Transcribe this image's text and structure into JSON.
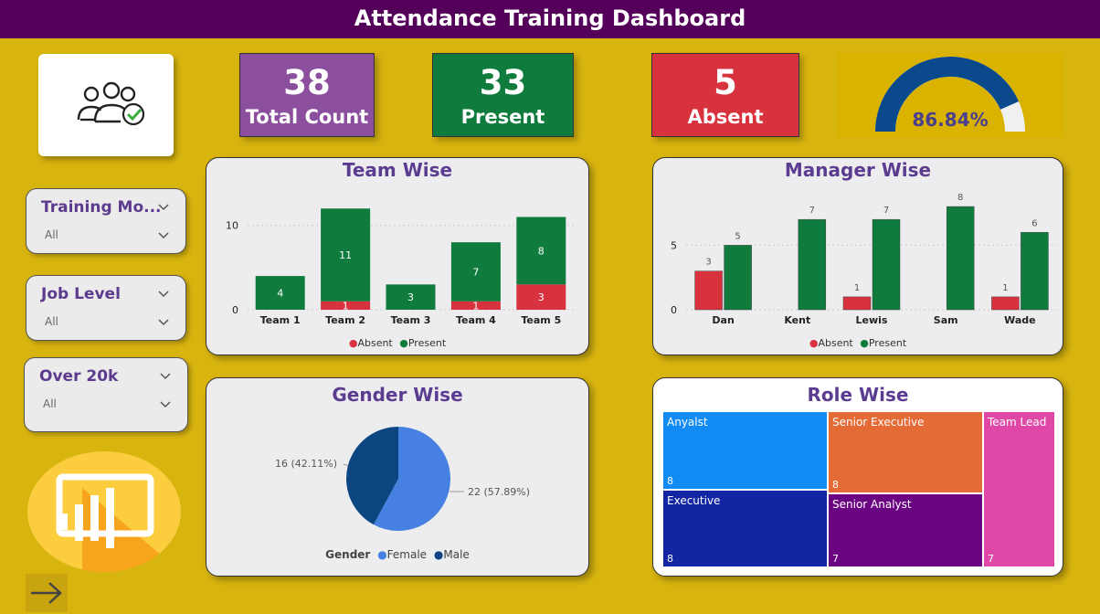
{
  "header": {
    "title": "Attendance Training Dashboard"
  },
  "logo": {
    "icon": "team-check-icon"
  },
  "kpis": {
    "total": {
      "value": "38",
      "label": "Total Count",
      "color": "#8b4f9e"
    },
    "present": {
      "value": "33",
      "label": "Present",
      "color": "#0f7b3c"
    },
    "absent": {
      "value": "5",
      "label": "Absent",
      "color": "#d8323f"
    }
  },
  "gauge": {
    "value_text": "86.84%",
    "value": 0.8684,
    "fill_color": "#0a4a8c",
    "track_color": "#f0f0f0"
  },
  "slicers": [
    {
      "title": "Training Mo...",
      "value": "All"
    },
    {
      "title": "Job Level",
      "value": "All"
    },
    {
      "title": "Over 20k",
      "value": "All"
    }
  ],
  "team_chart": {
    "title": "Team Wise",
    "legend_absent": "Absent",
    "legend_present": "Present"
  },
  "manager_chart": {
    "title": "Manager Wise",
    "legend_absent": "Absent",
    "legend_present": "Present"
  },
  "gender_chart": {
    "title": "Gender Wise",
    "legend_title": "Gender",
    "legend_female": "Female",
    "legend_male": "Male",
    "label_male": "16 (42.11%)",
    "label_female": "22 (57.89%)"
  },
  "role_chart": {
    "title": "Role Wise"
  },
  "chart_data": [
    {
      "type": "bar",
      "title": "Team Wise",
      "categories": [
        "Team 1",
        "Team 2",
        "Team 3",
        "Team 4",
        "Team 5"
      ],
      "stacked": true,
      "series": [
        {
          "name": "Absent",
          "color": "#d8323f",
          "values": [
            0,
            1,
            0,
            1,
            3
          ]
        },
        {
          "name": "Present",
          "color": "#0f7b3c",
          "values": [
            4,
            11,
            3,
            7,
            8
          ]
        }
      ],
      "yticks": [
        0,
        10
      ],
      "ylim": [
        0,
        13
      ],
      "grid": true,
      "legend": "bottom"
    },
    {
      "type": "bar",
      "title": "Manager Wise",
      "categories": [
        "Dan",
        "Kent",
        "Lewis",
        "Sam",
        "Wade"
      ],
      "stacked": false,
      "series": [
        {
          "name": "Absent",
          "color": "#d8323f",
          "values": [
            3,
            0,
            1,
            0,
            1
          ]
        },
        {
          "name": "Present",
          "color": "#0f7b3c",
          "values": [
            5,
            7,
            7,
            8,
            6
          ]
        }
      ],
      "yticks": [
        0,
        5
      ],
      "ylim": [
        0,
        8.5
      ],
      "grid": true,
      "legend": "bottom"
    },
    {
      "type": "pie",
      "title": "Gender Wise",
      "slices": [
        {
          "name": "Female",
          "value": 22,
          "percent": 57.89,
          "color": "#4680e0"
        },
        {
          "name": "Male",
          "value": 16,
          "percent": 42.11,
          "color": "#0b4680"
        }
      ],
      "legend": "bottom"
    },
    {
      "type": "treemap",
      "title": "Role Wise",
      "items": [
        {
          "name": "Anyalst",
          "value": 8,
          "color": "#128bf5"
        },
        {
          "name": "Executive",
          "value": 8,
          "color": "#1226a3"
        },
        {
          "name": "Senior Executive",
          "value": 8,
          "color": "#e46a36"
        },
        {
          "name": "Senior Analyst",
          "value": 7,
          "color": "#6b0482"
        },
        {
          "name": "Team Lead",
          "value": 7,
          "color": "#e048a8"
        }
      ]
    }
  ]
}
